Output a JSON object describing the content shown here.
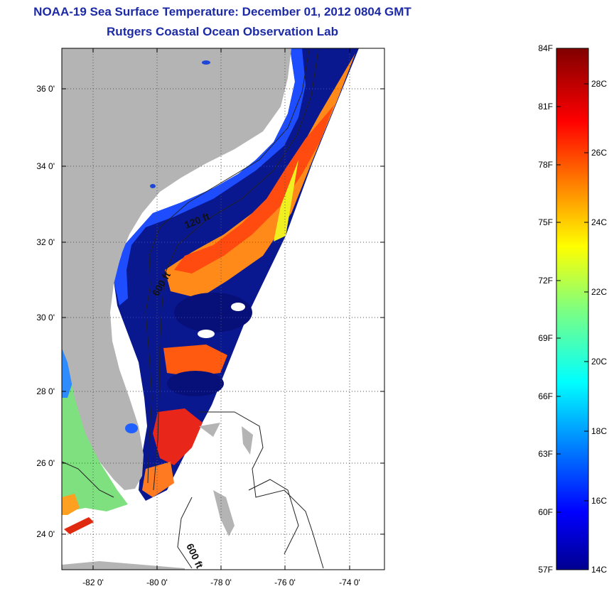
{
  "title": "NOAA-19 Sea Surface Temperature:  December 01, 2012 0804 GMT",
  "subtitle": "Rutgers Coastal Ocean Observation Lab",
  "map": {
    "lat_labels": [
      "36 0'",
      "34 0'",
      "32 0'",
      "30 0'",
      "28 0'",
      "26 0'",
      "24 0'"
    ],
    "lon_labels": [
      "-82 0'",
      "-80 0'",
      "-78 0'",
      "-76 0'",
      "-74 0'"
    ],
    "isobath_labels": [
      "120 ft",
      "600 ft",
      "600 ft"
    ],
    "land_color": "#b4b4b4",
    "missing_data_color": "#ffffff"
  },
  "colorbar": {
    "fahrenheit_labels": [
      "84F",
      "81F",
      "78F",
      "75F",
      "72F",
      "69F",
      "66F",
      "63F",
      "60F",
      "57F"
    ],
    "celsius_labels": [
      "28C",
      "26C",
      "24C",
      "22C",
      "20C",
      "18C",
      "16C",
      "14C"
    ],
    "colormap": "jet",
    "min_color": "#00008f",
    "max_color": "#800000"
  }
}
